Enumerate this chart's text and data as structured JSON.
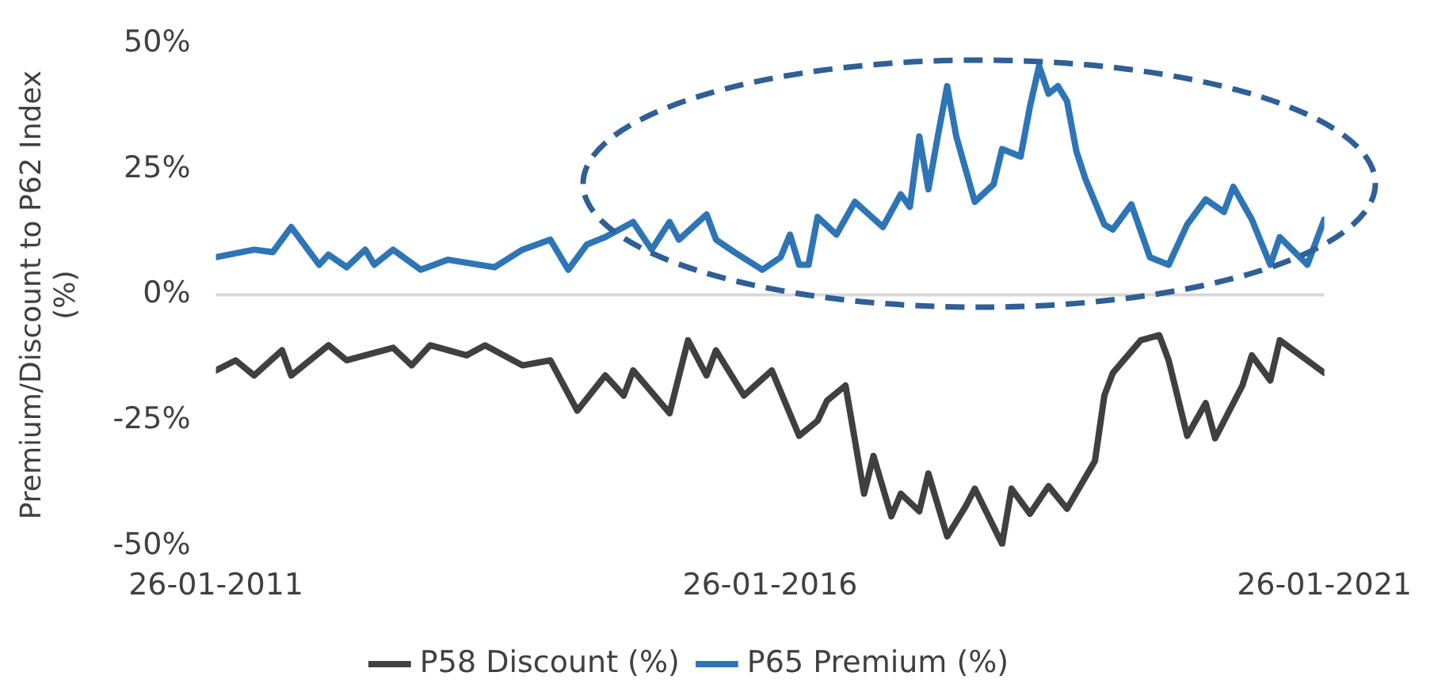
{
  "chart_data": {
    "type": "line",
    "ylabel": "Premium/Discount to P62 Index (%)",
    "xlim": [
      "2011-01-26",
      "2021-01-26"
    ],
    "xticks": [
      {
        "value": "2011-01-26",
        "label": "26-01-2011"
      },
      {
        "value": "2016-01-26",
        "label": "26-01-2016"
      },
      {
        "value": "2021-01-26",
        "label": "26-01-2021"
      }
    ],
    "ylim": [
      -50,
      50
    ],
    "yticks": [
      {
        "value": -50,
        "label": "-50%"
      },
      {
        "value": -25,
        "label": "-25%"
      },
      {
        "value": 0,
        "label": "0%"
      },
      {
        "value": 25,
        "label": "25%"
      },
      {
        "value": 50,
        "label": "50%"
      }
    ],
    "grid": false,
    "legend": "bottom",
    "marker": "none",
    "line_style": "solid",
    "ref_lines": [
      {
        "axis": "y",
        "value": 0,
        "color": "#d9d9d9"
      }
    ],
    "series": [
      {
        "name": "P58 Discount (%)",
        "color": "#404040",
        "x": [
          "2011-01-26",
          "2011-04",
          "2011-06",
          "2011-09",
          "2011-10",
          "2012-02",
          "2012-04",
          "2012-09",
          "2012-11",
          "2013-01",
          "2013-05",
          "2013-07",
          "2013-11",
          "2014-02",
          "2014-05",
          "2014-08",
          "2014-10",
          "2014-11",
          "2015-03",
          "2015-05",
          "2015-07",
          "2015-08",
          "2015-11",
          "2016-02",
          "2016-05",
          "2016-07",
          "2016-08",
          "2016-10",
          "2016-12",
          "2017-01",
          "2017-03",
          "2017-04",
          "2017-06",
          "2017-07",
          "2017-09",
          "2017-11",
          "2017-12",
          "2018-03",
          "2018-04",
          "2018-06",
          "2018-08",
          "2018-10",
          "2019-01",
          "2019-02",
          "2019-03",
          "2019-06",
          "2019-08",
          "2019-09",
          "2019-11",
          "2020-01",
          "2020-02",
          "2020-05",
          "2020-06",
          "2020-08",
          "2020-09",
          "2021-01-26"
        ],
        "values": [
          -15,
          -13,
          -16,
          -11,
          -16,
          -10,
          -13,
          -10.5,
          -14,
          -10,
          -12,
          -10,
          -14,
          -13,
          -23,
          -16,
          -20,
          -15,
          -23.5,
          -9,
          -16,
          -11,
          -20,
          -15,
          -28,
          -25,
          -21,
          -18,
          -39.5,
          -32,
          -44,
          -39.5,
          -43,
          -35.5,
          -48,
          -42,
          -38.5,
          -49.5,
          -38.5,
          -43.5,
          -38,
          -42.5,
          -33,
          -20,
          -15.5,
          -9,
          -8,
          -13,
          -28,
          -21.5,
          -28.5,
          -18,
          -12,
          -17,
          -9,
          -15.5
        ]
      },
      {
        "name": "P65 Premium (%)",
        "color": "#2e75b6",
        "x": [
          "2011-01-26",
          "2011-06",
          "2011-08",
          "2011-10",
          "2012-01",
          "2012-02",
          "2012-04",
          "2012-06",
          "2012-07",
          "2012-09",
          "2012-12",
          "2013-03",
          "2013-08",
          "2013-11",
          "2014-02",
          "2014-04",
          "2014-06",
          "2014-08",
          "2014-11",
          "2015-01",
          "2015-03",
          "2015-04",
          "2015-07",
          "2015-08",
          "2015-10",
          "2016-01",
          "2016-03",
          "2016-04",
          "2016-05",
          "2016-06",
          "2016-07",
          "2016-09",
          "2016-11",
          "2017-02",
          "2017-04",
          "2017-05",
          "2017-06",
          "2017-07",
          "2017-08",
          "2017-09",
          "2017-10",
          "2017-12",
          "2018-02",
          "2018-03",
          "2018-05",
          "2018-06",
          "2018-07",
          "2018-08",
          "2018-09",
          "2018-10",
          "2018-11",
          "2018-12",
          "2019-02",
          "2019-03",
          "2019-05",
          "2019-07",
          "2019-09",
          "2019-11",
          "2020-01",
          "2020-03",
          "2020-04",
          "2020-06",
          "2020-08",
          "2020-09",
          "2020-12",
          "2021-01-26"
        ],
        "values": [
          7.5,
          9,
          8.5,
          13.5,
          6,
          8,
          5.5,
          9,
          6,
          9,
          5,
          7,
          5.5,
          9,
          11,
          5,
          10,
          11.5,
          14.5,
          9,
          14.5,
          11,
          16,
          11,
          8.5,
          5,
          7.5,
          12,
          6,
          6,
          15.5,
          12,
          18.5,
          13.5,
          20,
          17.5,
          31.5,
          21,
          31.5,
          41.5,
          31.5,
          18.5,
          22,
          29,
          27.5,
          37.5,
          45.5,
          40,
          41.5,
          38.5,
          28.5,
          23,
          14,
          13,
          18,
          7.5,
          6,
          14,
          19,
          16.5,
          21.5,
          15,
          6,
          11.5,
          6,
          15
        ]
      }
    ]
  }
}
